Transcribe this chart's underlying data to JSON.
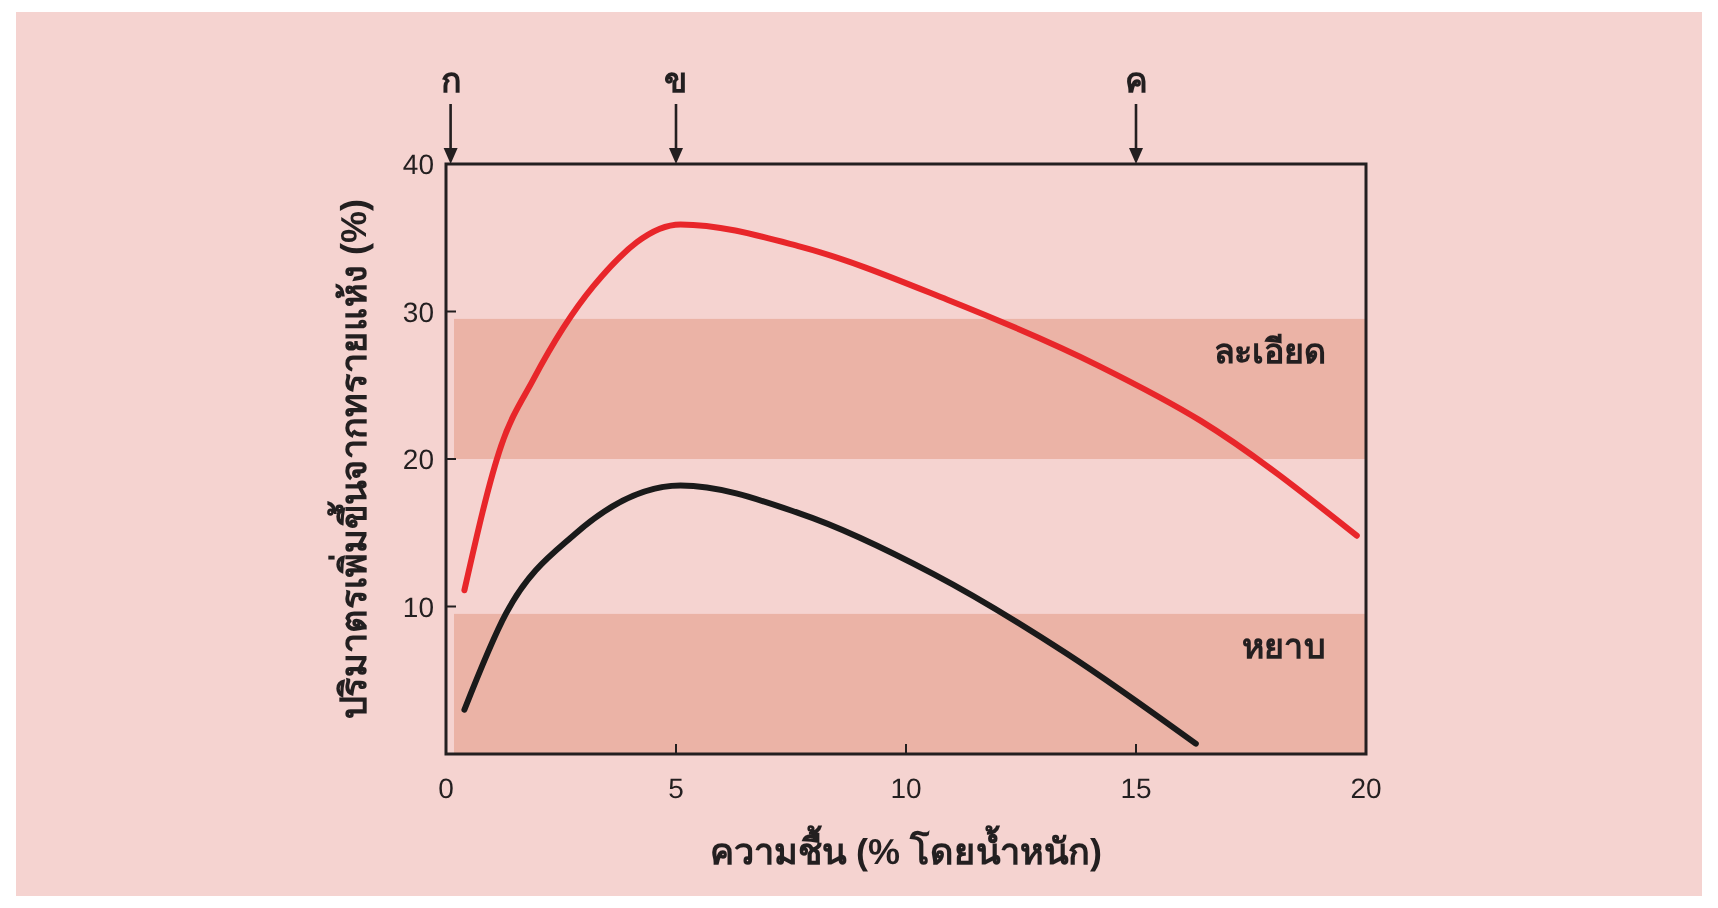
{
  "chart_data": {
    "type": "line",
    "xlabel": "ความชื้น (% โดยน้ำหนัก)",
    "ylabel": "ปริมาตรเพิ่มขึ้นจากทรายแห้ง (%)",
    "xlim": [
      0,
      20
    ],
    "ylim": [
      0,
      40
    ],
    "xticks": [
      0,
      5,
      10,
      15,
      20
    ],
    "yticks": [
      10,
      20,
      30,
      40
    ],
    "series": [
      {
        "color": "#e8262a",
        "x": [
          0.4,
          1.2,
          1.9,
          3.2,
          5.1,
          7.7,
          10.9,
          14.2,
          16.4,
          19.8
        ],
        "values": [
          11.1,
          20.9,
          25.4,
          31.7,
          35.9,
          34.4,
          30.8,
          26.3,
          22.6,
          14.8
        ]
      },
      {
        "color": "#1a1a1a",
        "x": [
          0.4,
          1.3,
          2.8,
          5.1,
          7.7,
          10.6,
          13.5,
          16.3
        ],
        "values": [
          3.0,
          9.5,
          14.9,
          18.2,
          16.3,
          12.2,
          6.8,
          0.7
        ]
      }
    ],
    "bands": [
      {
        "axis": "y",
        "from": 20,
        "to": 29.5,
        "label": "ละเอียด",
        "color": "#ebb3a6"
      },
      {
        "axis": "y",
        "from": 0,
        "to": 9.5,
        "label": "หยาบ",
        "color": "#ebb3a6"
      }
    ],
    "ref_lines": [
      {
        "axis": "x",
        "value": 0.1,
        "label": "ก"
      },
      {
        "axis": "x",
        "value": 5,
        "label": "ข"
      },
      {
        "axis": "x",
        "value": 15,
        "label": "ค"
      }
    ],
    "grid": false,
    "marker": "none",
    "line_style": "solid"
  }
}
